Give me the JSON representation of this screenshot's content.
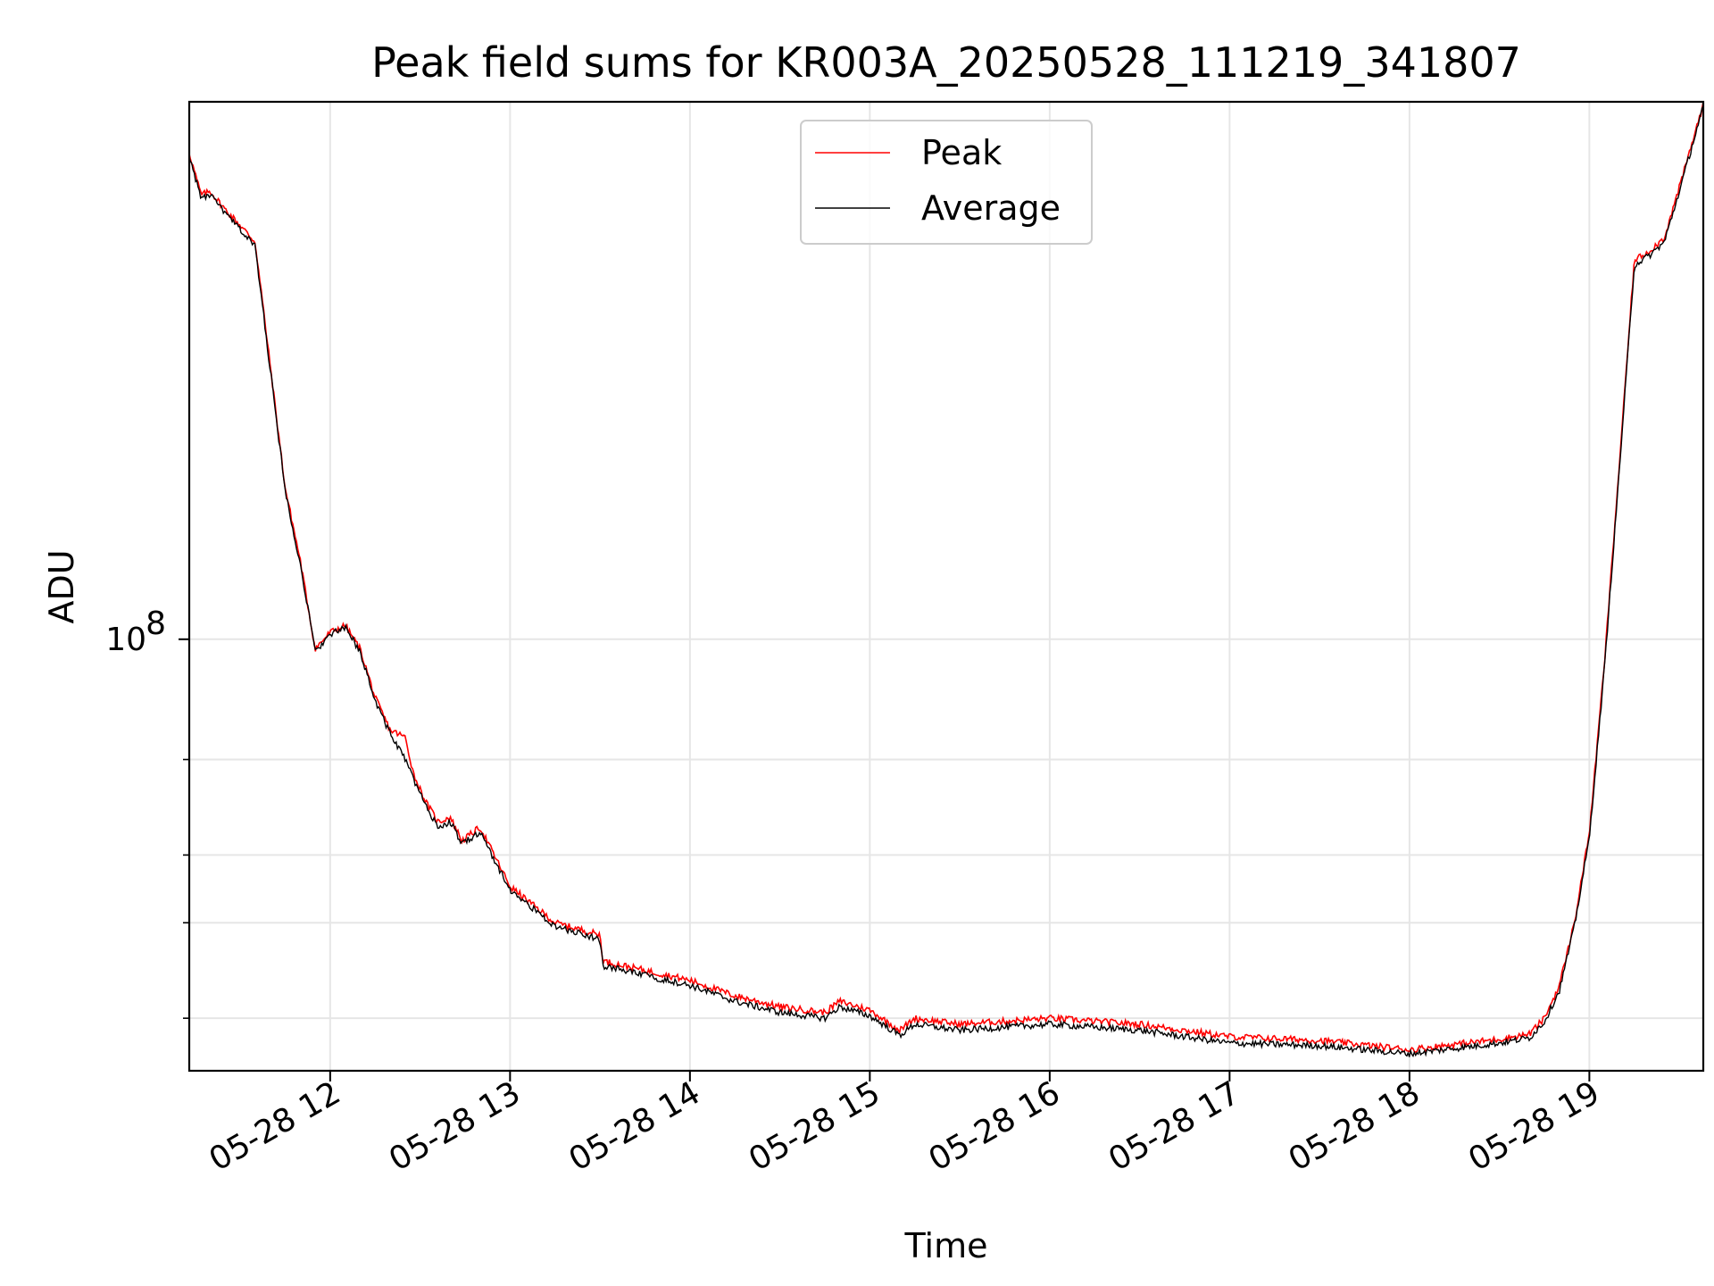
{
  "chart_data": {
    "type": "line",
    "title": "Peak field sums for KR003A_20250528_111219_341807",
    "xlabel": "Time",
    "ylabel": "ADU",
    "y_scale": "log",
    "ylim": [
      16000000.0,
      980000000.0
    ],
    "xlim": [
      "2025-05-28 11:13",
      "2025-05-28 19:38"
    ],
    "grid": true,
    "legend_position": "top-center",
    "x_tick_labels": [
      "05-28 12",
      "05-28 13",
      "05-28 14",
      "05-28 15",
      "05-28 16",
      "05-28 17",
      "05-28 18",
      "05-28 19"
    ],
    "y_tick_labels": [
      {
        "base": "10",
        "exponent": "8",
        "value": 100000000.0
      }
    ],
    "y_minor_ticks": [
      20000000.0,
      30000000.0,
      40000000.0,
      60000000.0
    ],
    "x": [
      "2025-05-28 11:13",
      "2025-05-28 11:15",
      "2025-05-28 11:17",
      "2025-05-28 11:20",
      "2025-05-28 11:25",
      "2025-05-28 11:30",
      "2025-05-28 11:35",
      "2025-05-28 11:40",
      "2025-05-28 11:45",
      "2025-05-28 11:50",
      "2025-05-28 11:55",
      "2025-05-28 12:00",
      "2025-05-28 12:05",
      "2025-05-28 12:10",
      "2025-05-28 12:15",
      "2025-05-28 12:20",
      "2025-05-28 12:25",
      "2025-05-28 12:28",
      "2025-05-28 12:32",
      "2025-05-28 12:36",
      "2025-05-28 12:40",
      "2025-05-28 12:44",
      "2025-05-28 12:50",
      "2025-05-28 13:00",
      "2025-05-28 13:15",
      "2025-05-28 13:30",
      "2025-05-28 13:31",
      "2025-05-28 13:45",
      "2025-05-28 14:00",
      "2025-05-28 14:15",
      "2025-05-28 14:30",
      "2025-05-28 14:45",
      "2025-05-28 14:50",
      "2025-05-28 15:00",
      "2025-05-28 15:10",
      "2025-05-28 15:15",
      "2025-05-28 15:30",
      "2025-05-28 16:00",
      "2025-05-28 16:30",
      "2025-05-28 17:00",
      "2025-05-28 17:30",
      "2025-05-28 18:00",
      "2025-05-28 18:30",
      "2025-05-28 18:40",
      "2025-05-28 18:45",
      "2025-05-28 18:50",
      "2025-05-28 18:55",
      "2025-05-28 19:00",
      "2025-05-28 19:05",
      "2025-05-28 19:10",
      "2025-05-28 19:15",
      "2025-05-28 19:20",
      "2025-05-28 19:25",
      "2025-05-28 19:30",
      "2025-05-28 19:35",
      "2025-05-28 19:38"
    ],
    "series": [
      {
        "name": "Peak",
        "color": "#ff0000",
        "values": [
          790000000.0,
          720000000.0,
          660000000.0,
          670000000.0,
          620000000.0,
          580000000.0,
          540000000.0,
          320000000.0,
          190000000.0,
          140000000.0,
          96000000.0,
          103000000.0,
          106000000.0,
          96000000.0,
          78000000.0,
          68000000.0,
          66000000.0,
          56000000.0,
          50000000.0,
          46000000.0,
          47000000.0,
          42500000.0,
          45000000.0,
          35000000.0,
          30000000.0,
          28500000.0,
          25500000.0,
          24500000.0,
          23500000.0,
          22000000.0,
          21000000.0,
          20500000.0,
          21500000.0,
          20700000.0,
          19000000.0,
          20000000.0,
          19500000.0,
          20000000.0,
          19500000.0,
          18500000.0,
          18200000.0,
          17500000.0,
          18300000.0,
          18700000.0,
          20000000.0,
          23000000.0,
          30000000.0,
          44000000.0,
          90000000.0,
          210000000.0,
          500000000.0,
          520000000.0,
          550000000.0,
          680000000.0,
          850000000.0,
          970000000.0
        ]
      },
      {
        "name": "Average",
        "color": "#000000",
        "values": [
          780000000.0,
          710000000.0,
          650000000.0,
          660000000.0,
          610000000.0,
          570000000.0,
          530000000.0,
          315000000.0,
          188000000.0,
          138000000.0,
          95000000.0,
          102000000.0,
          105000000.0,
          95000000.0,
          77000000.0,
          67000000.0,
          60000000.0,
          55000000.0,
          49000000.0,
          45000000.0,
          46000000.0,
          42000000.0,
          44000000.0,
          34500000.0,
          29500000.0,
          28000000.0,
          25000000.0,
          24000000.0,
          23000000.0,
          21500000.0,
          20500000.0,
          20000000.0,
          21000000.0,
          20200000.0,
          18600000.0,
          19500000.0,
          19000000.0,
          19500000.0,
          19000000.0,
          18000000.0,
          17800000.0,
          17200000.0,
          18000000.0,
          18400000.0,
          19700000.0,
          22500000.0,
          29500000.0,
          43000000.0,
          88000000.0,
          205000000.0,
          490000000.0,
          510000000.0,
          540000000.0,
          670000000.0,
          840000000.0,
          960000000.0
        ]
      }
    ]
  }
}
